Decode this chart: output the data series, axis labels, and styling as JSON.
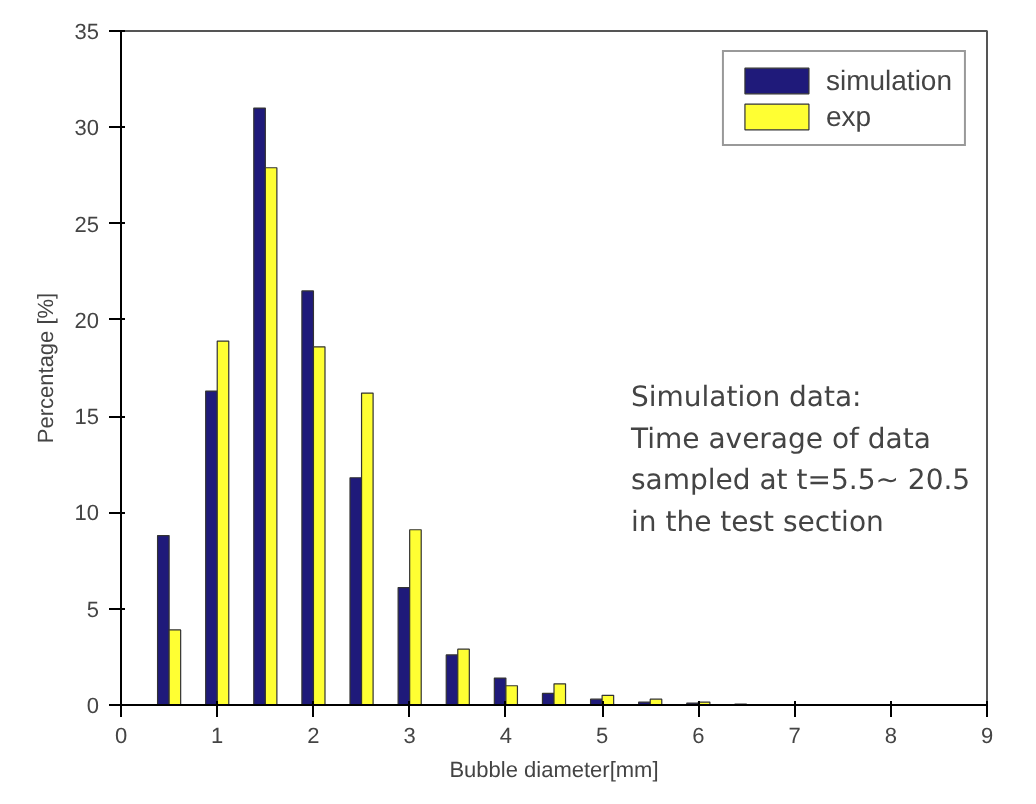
{
  "chart_data": {
    "type": "bar",
    "xlabel": "Bubble diameter[mm]",
    "ylabel": "Percentage [%]",
    "x": [
      0.5,
      1,
      1.5,
      2,
      2.5,
      3,
      3.5,
      4,
      4.5,
      5,
      5.5,
      6,
      6.5
    ],
    "series": [
      {
        "name": "simulation",
        "color": "#1f1a7a",
        "values": [
          8.8,
          16.3,
          31,
          21.5,
          11.8,
          6.1,
          2.6,
          1.4,
          0.6,
          0.3,
          0.15,
          0.1,
          0.05
        ]
      },
      {
        "name": "exp",
        "color": "#ffff33",
        "values": [
          3.9,
          18.9,
          27.9,
          18.6,
          16.2,
          9.1,
          2.9,
          1.0,
          1.1,
          0.5,
          0.3,
          0.15,
          0.02
        ]
      }
    ],
    "xlim": [
      0,
      9
    ],
    "xticks": [
      0,
      1,
      2,
      3,
      4,
      5,
      6,
      7,
      8,
      9
    ],
    "ylim": [
      0,
      35
    ],
    "yticks": [
      0,
      5,
      10,
      15,
      20,
      25,
      30,
      35
    ],
    "grid": false,
    "legend": "top right",
    "annotations": [
      "Simulation data:\nTime average of data\nsampled at t=5.5~ 20.5\nin the test section"
    ]
  }
}
